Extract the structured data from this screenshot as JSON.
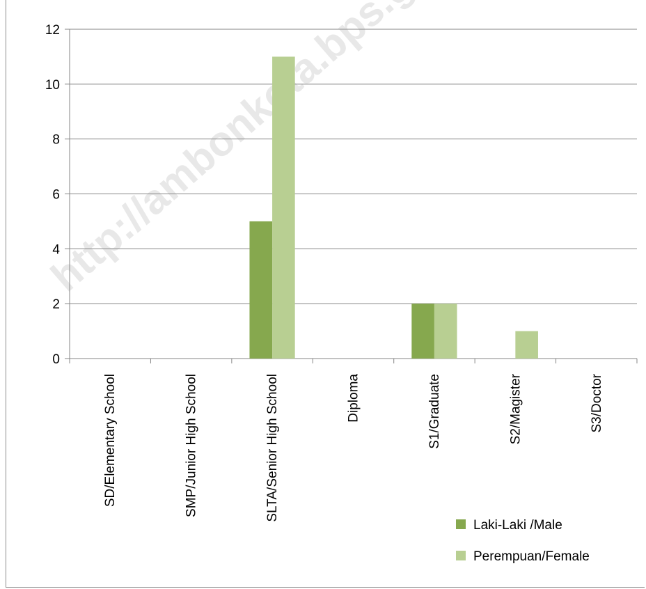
{
  "watermark": "http://ambonkota.bps.go.id",
  "chart_data": {
    "type": "bar",
    "title": "",
    "xlabel": "",
    "ylabel": "",
    "ylim": [
      0,
      12
    ],
    "yticks": [
      0,
      2,
      4,
      6,
      8,
      10,
      12
    ],
    "grid": true,
    "legend_position": "bottom-right",
    "categories": [
      "SD/Elementary School",
      "SMP/Junior High School",
      "SLTA/Senior High School",
      "Diploma",
      "S1/Graduate",
      "S2/Magister",
      "S3/Doctor"
    ],
    "series": [
      {
        "name": "Laki-Laki /Male",
        "color": "#86a84e",
        "values": [
          0,
          0,
          5,
          0,
          2,
          0,
          0
        ]
      },
      {
        "name": "Perempuan/Female",
        "color": "#b8cf92",
        "values": [
          0,
          0,
          11,
          0,
          2,
          1,
          0
        ]
      }
    ]
  }
}
